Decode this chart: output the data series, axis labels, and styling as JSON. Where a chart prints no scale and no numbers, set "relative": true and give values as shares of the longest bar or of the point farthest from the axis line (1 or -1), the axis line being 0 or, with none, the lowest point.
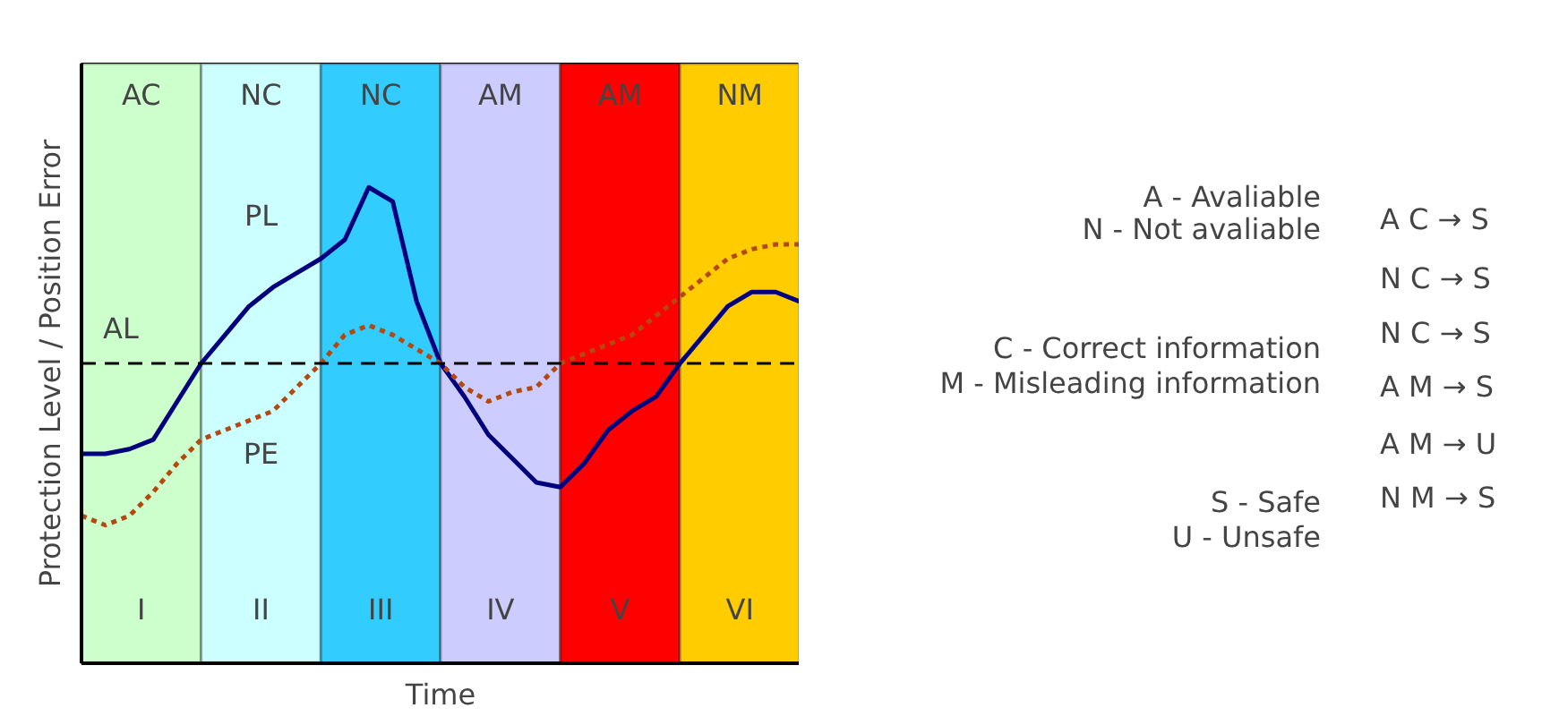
{
  "chart_data": {
    "type": "line",
    "relative": true,
    "xlabel": "Time",
    "ylabel": "Protection Level / Position Error",
    "tick_labels": false,
    "grid": false,
    "categories": [
      null,
      null,
      null,
      null,
      null,
      null,
      null,
      null,
      null,
      null,
      null,
      null,
      null,
      null,
      null,
      null,
      null,
      null,
      null,
      null,
      null,
      null,
      null,
      null,
      null,
      null,
      null,
      null,
      null,
      null,
      null
    ],
    "series": [
      {
        "color": "#00007f",
        "line_style": "solid",
        "values": [
          0.44,
          0.44,
          0.45,
          0.47,
          0.55,
          0.63,
          0.69,
          0.75,
          0.79,
          0.82,
          0.85,
          0.89,
          1.0,
          0.97,
          0.76,
          0.63,
          0.56,
          0.48,
          0.43,
          0.38,
          0.37,
          0.42,
          0.49,
          0.53,
          0.56,
          0.63,
          0.69,
          0.75,
          0.78,
          0.78,
          0.76
        ]
      },
      {
        "color": "#b5480e",
        "line_style": "dotted",
        "values": [
          0.31,
          0.29,
          0.31,
          0.36,
          0.42,
          0.47,
          0.49,
          0.51,
          0.53,
          0.58,
          0.63,
          0.69,
          0.71,
          0.69,
          0.66,
          0.63,
          0.58,
          0.55,
          0.57,
          0.58,
          0.63,
          0.65,
          0.67,
          0.69,
          0.73,
          0.77,
          0.81,
          0.85,
          0.87,
          0.88,
          0.88
        ]
      }
    ],
    "ref_lines": [
      {
        "axis": "y",
        "value": 0.63,
        "label": "AL",
        "color": "#000000",
        "line_style": "dashed"
      }
    ],
    "annotations": [
      "PL",
      "PE",
      "AC",
      "NC",
      "NC",
      "AM",
      "AM",
      "NM",
      "I",
      "II",
      "III",
      "IV",
      "V",
      "VI",
      "A - Avaliable",
      "N - Not avaliable",
      "C - Correct information",
      "M - Misleading information",
      "S - Safe",
      "U - Unsafe",
      "A C → S",
      "N C → S",
      "N C → S",
      "A M → S",
      "A M → U",
      "N M → S"
    ]
  }
}
